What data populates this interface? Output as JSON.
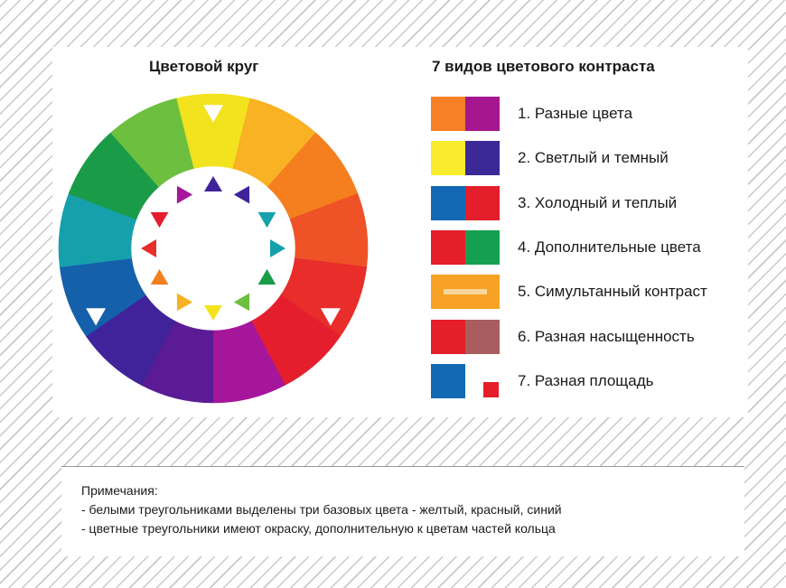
{
  "wheel": {
    "title": "Цветовой круг",
    "segments": [
      "#f2e31e",
      "#f9b224",
      "#f57f1f",
      "#ee5226",
      "#e82d2a",
      "#e51e2e",
      "#a6169b",
      "#5b1b95",
      "#40239a",
      "#1560ab",
      "#15a0ac",
      "#1a9b48",
      "#6dbf3f"
    ],
    "inner_triangles": [
      "#40239a",
      "#40239a",
      "#15a0ac",
      "#15a0ac",
      "#1a9b48",
      "#6dbf3f",
      "#f2e31e",
      "#f9b224",
      "#f57f1f",
      "#e82d2a",
      "#e51e2e",
      "#a6169b"
    ],
    "base_markers": [
      "yellow",
      "red",
      "blue"
    ]
  },
  "contrast": {
    "title": "7 видов цветового контраста",
    "items": [
      {
        "label": "1. Разные цвета",
        "colors": [
          "#f58025",
          "#a4178f"
        ],
        "type": "pair"
      },
      {
        "label": "2. Светлый и темный",
        "colors": [
          "#f8ec2c",
          "#3a2997"
        ],
        "type": "pair"
      },
      {
        "label": "3. Холодный и теплый",
        "colors": [
          "#1368b3",
          "#e51e2b"
        ],
        "type": "pair"
      },
      {
        "label": "4. Дополнительные цвета",
        "colors": [
          "#e51e2b",
          "#15a051"
        ],
        "type": "pair"
      },
      {
        "label": "5. Симультанный контраст",
        "colors": [
          "#f7a224",
          "#f9d79a"
        ],
        "type": "stripe"
      },
      {
        "label": "6. Разная насыщенность",
        "colors": [
          "#e51e2b",
          "#a85d5e"
        ],
        "type": "pair"
      },
      {
        "label": "7. Разная площадь",
        "colors": [
          "#1368b3",
          "#e51e2b"
        ],
        "type": "area"
      }
    ]
  },
  "notes": {
    "heading": "Примечания:",
    "line1": "- белыми треугольниками выделены три базовых цвета - желтый, красный, синий",
    "line2": "- цветные треугольники имеют окраску, дополнительную к цветам частей кольца"
  }
}
